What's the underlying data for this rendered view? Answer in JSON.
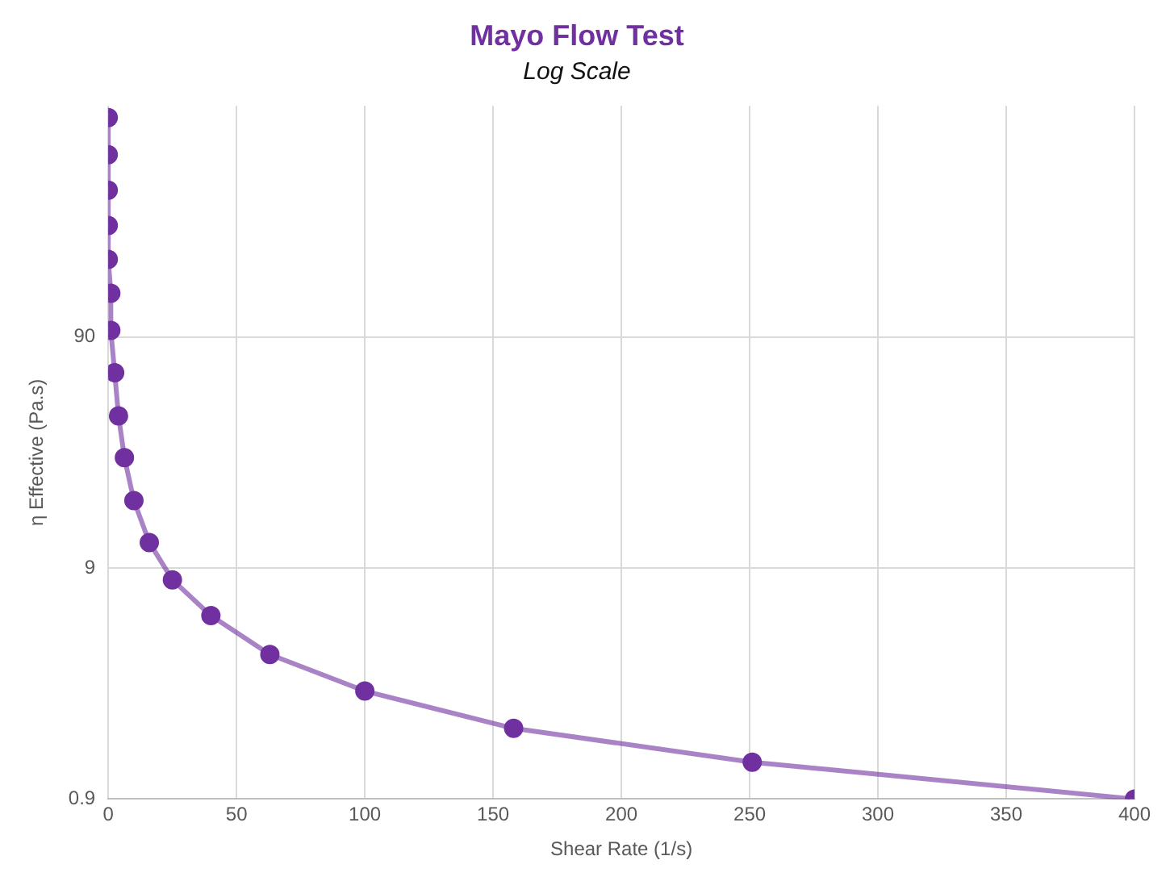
{
  "chart_data": {
    "type": "line",
    "title": "Mayo Flow Test",
    "subtitle": "Log Scale",
    "xlabel": "Shear Rate (1/s)",
    "ylabel": "η Effective (Pa.s)",
    "x": [
      0,
      0,
      0,
      0,
      0,
      1,
      1,
      2.5,
      4,
      6.3,
      10,
      16,
      25,
      40,
      63,
      100,
      158,
      251,
      400
    ],
    "series": [
      {
        "color": "#7030a0",
        "values": [
          800,
          553,
          388,
          273,
          195,
          139,
          96,
          63,
          41,
          27,
          17.6,
          11.6,
          8.0,
          5.6,
          3.8,
          2.64,
          1.82,
          1.3,
          0.9
        ]
      }
    ],
    "xlim": [
      0,
      400
    ],
    "xticks": [
      0,
      50,
      100,
      150,
      200,
      250,
      300,
      350,
      400
    ],
    "ylim": [
      0.9,
      900
    ],
    "yticks": [
      0.9,
      9,
      90
    ],
    "log": "y",
    "grid": true,
    "marker": "circle",
    "line_style": "solid",
    "legend": false
  }
}
